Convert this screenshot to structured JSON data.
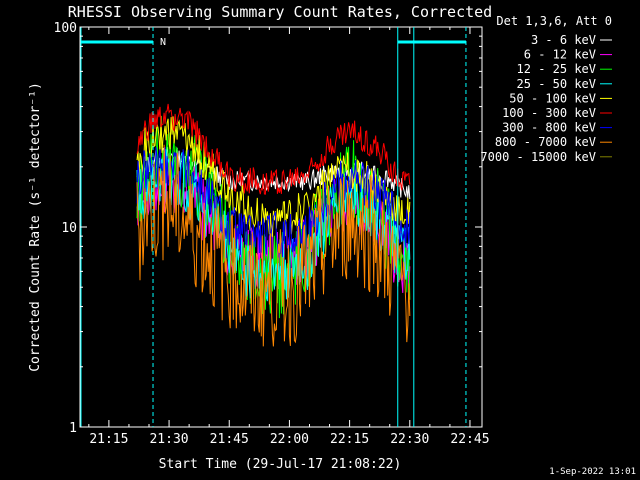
{
  "title": "RHESSI Observing Summary Count Rates, Corrected",
  "footer_date": "1-Sep-2022 13:01",
  "colors": {
    "background": "#000000",
    "axes": "#ffffff",
    "attenuator_bar": "#00ffff",
    "state_lines": "#00ffff"
  },
  "chart_data": {
    "type": "line",
    "title": "RHESSI Observing Summary Count Rates, Corrected",
    "xlabel": "Start Time (29-Jul-17 21:08:22)",
    "ylabel": "Corrected Count Rate (s⁻¹ detector⁻¹)",
    "yscale": "log",
    "ylim": [
      1,
      100
    ],
    "xlim_minutes": [
      21.13,
      22.8
    ],
    "x_tick_labels": [
      "21:15",
      "21:30",
      "21:45",
      "22:00",
      "22:15",
      "22:30",
      "22:45"
    ],
    "y_tick_labels": [
      "1",
      "10",
      "100"
    ],
    "legend_title": "Det 1,3,6, Att 0",
    "legend_position": "right",
    "state_annotation": "N",
    "attenuator_segments": [
      [
        "21:08",
        "21:26"
      ],
      [
        "22:27",
        "22:44"
      ]
    ],
    "dashed_lines": [
      "21:26",
      "22:44"
    ],
    "solid_lines": [
      "21:08",
      "22:27",
      "22:31"
    ],
    "series": [
      {
        "name": "3 - 6 keV",
        "color": "#ffffff",
        "x": [
          "21:22",
          "21:24",
          "21:27",
          "21:30",
          "21:33",
          "21:36",
          "21:40",
          "21:45",
          "21:50",
          "21:55",
          "22:00",
          "22:05",
          "22:08",
          "22:12",
          "22:15",
          "22:18",
          "22:21",
          "22:24",
          "22:27",
          "22:30"
        ],
        "y": [
          17,
          20,
          22,
          23,
          22,
          21,
          19,
          17,
          17,
          17,
          17,
          17,
          18,
          19,
          19,
          19,
          18,
          18,
          16,
          15
        ]
      },
      {
        "name": "6 - 12 keV",
        "color": "#ff00ff",
        "x": [
          "21:22",
          "21:24",
          "21:27",
          "21:30",
          "21:33",
          "21:36",
          "21:40",
          "21:45",
          "21:50",
          "21:55",
          "22:00",
          "22:05",
          "22:08",
          "22:12",
          "22:15",
          "22:18",
          "22:21",
          "22:24",
          "22:27",
          "22:30"
        ],
        "y": [
          13,
          15,
          16,
          17,
          16,
          14,
          11,
          8,
          7,
          7,
          7,
          8,
          10,
          13,
          14,
          13,
          11,
          9,
          7,
          6
        ]
      },
      {
        "name": "12 - 25 keV",
        "color": "#00ff00",
        "x": [
          "21:22",
          "21:24",
          "21:27",
          "21:30",
          "21:33",
          "21:36",
          "21:40",
          "21:45",
          "21:50",
          "21:55",
          "22:00",
          "22:05",
          "22:08",
          "22:12",
          "22:15",
          "22:18",
          "22:21",
          "22:24",
          "22:27",
          "22:30"
        ],
        "y": [
          15,
          18,
          20,
          21,
          20,
          18,
          14,
          8,
          6,
          5.5,
          6,
          8,
          11,
          15,
          17,
          16,
          13,
          10,
          8,
          7
        ]
      },
      {
        "name": "25 - 50 keV",
        "color": "#00ffff",
        "x": [
          "21:22",
          "21:24",
          "21:27",
          "21:30",
          "21:33",
          "21:36",
          "21:40",
          "21:45",
          "21:50",
          "21:55",
          "22:00",
          "22:05",
          "22:08",
          "22:12",
          "22:15",
          "22:18",
          "22:21",
          "22:24",
          "22:27",
          "22:30"
        ],
        "y": [
          14,
          16,
          17,
          18,
          17,
          15,
          12,
          8,
          6,
          6,
          6,
          7,
          10,
          13,
          15,
          14,
          12,
          10,
          8,
          7
        ]
      },
      {
        "name": "50 - 100 keV",
        "color": "#ffff00",
        "x": [
          "21:22",
          "21:24",
          "21:27",
          "21:30",
          "21:33",
          "21:36",
          "21:40",
          "21:45",
          "21:50",
          "21:55",
          "22:00",
          "22:05",
          "22:08",
          "22:12",
          "22:15",
          "22:18",
          "22:21",
          "22:24",
          "22:27",
          "22:30"
        ],
        "y": [
          20,
          25,
          28,
          30,
          28,
          25,
          20,
          15,
          12,
          11,
          11,
          13,
          16,
          18,
          19,
          18,
          16,
          14,
          12,
          11
        ]
      },
      {
        "name": "100 - 300 keV",
        "color": "#ff0000",
        "x": [
          "21:22",
          "21:24",
          "21:27",
          "21:30",
          "21:33",
          "21:36",
          "21:40",
          "21:45",
          "21:50",
          "21:55",
          "22:00",
          "22:05",
          "22:08",
          "22:12",
          "22:15",
          "22:18",
          "22:21",
          "22:24",
          "22:27",
          "22:30"
        ],
        "y": [
          24,
          30,
          34,
          36,
          35,
          31,
          24,
          18,
          17,
          17,
          17,
          19,
          23,
          28,
          30,
          28,
          25,
          22,
          18,
          17
        ]
      },
      {
        "name": "300 - 800 keV",
        "color": "#0000ff",
        "x": [
          "21:22",
          "21:24",
          "21:27",
          "21:30",
          "21:33",
          "21:36",
          "21:40",
          "21:45",
          "21:50",
          "21:55",
          "22:00",
          "22:05",
          "22:08",
          "22:12",
          "22:15",
          "22:18",
          "22:21",
          "22:24",
          "22:27",
          "22:30"
        ],
        "y": [
          16,
          19,
          20,
          21,
          20,
          18,
          14,
          10,
          9,
          9,
          9,
          10,
          13,
          17,
          18,
          17,
          15,
          13,
          11,
          10
        ]
      },
      {
        "name": "800 - 7000 keV",
        "color": "#ff8800",
        "x": [
          "21:22",
          "21:24",
          "21:27",
          "21:30",
          "21:33",
          "21:36",
          "21:40",
          "21:45",
          "21:50",
          "21:55",
          "22:00",
          "22:05",
          "22:08",
          "22:12",
          "22:15",
          "22:18",
          "22:21",
          "22:24",
          "22:27",
          "22:30"
        ],
        "y": [
          10,
          12,
          13,
          13,
          12,
          10,
          8,
          6,
          5,
          5,
          5,
          6,
          8,
          10,
          11,
          10,
          9,
          7,
          6,
          5
        ]
      },
      {
        "name": "7000 - 15000 keV",
        "color": "#808000",
        "x": [],
        "y": []
      }
    ]
  }
}
